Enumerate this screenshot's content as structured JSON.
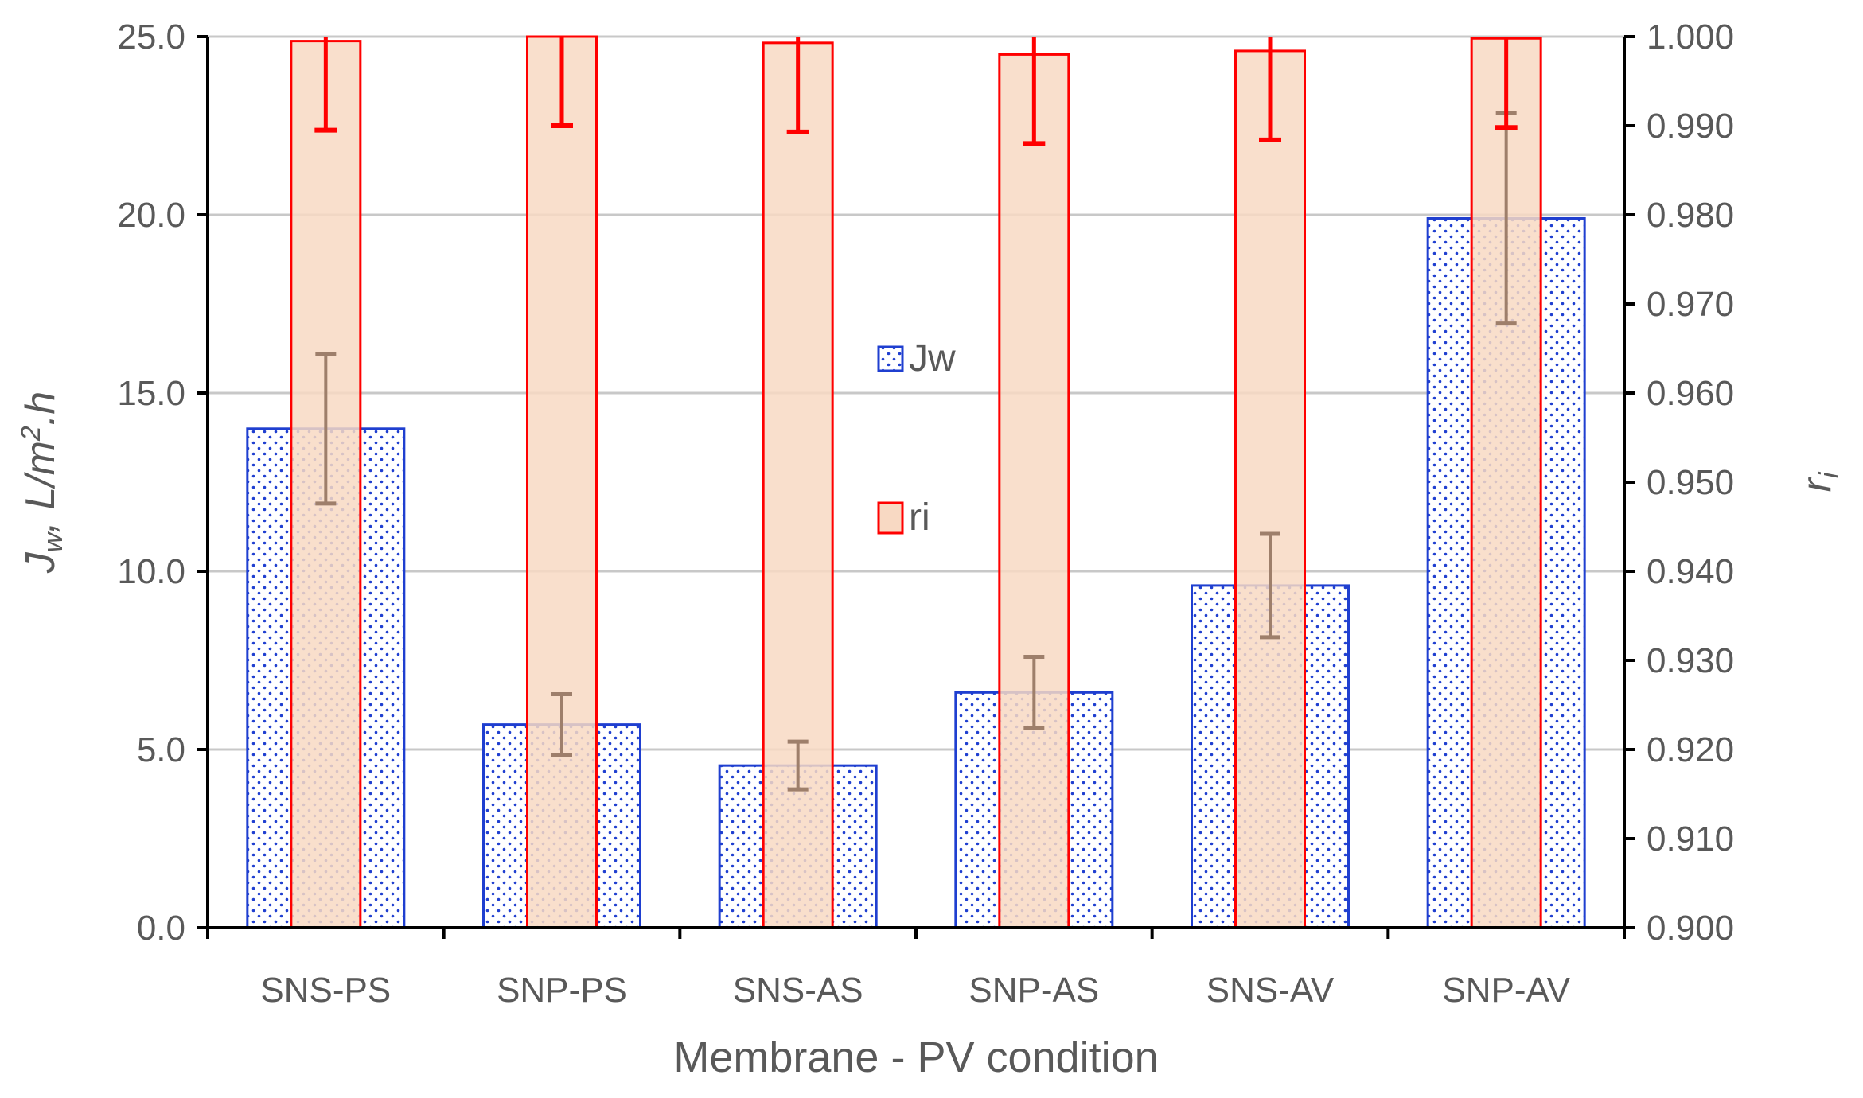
{
  "chart_data": {
    "type": "bar",
    "xlabel": "Membrane - PV condition",
    "ylabel": "Jw, L/m2.h",
    "ylabel_parts": {
      "main": "J",
      "sub": "w",
      "rest": ", L/m",
      "sup": "2",
      "tail": ".h"
    },
    "y2label": "ri",
    "y2label_parts": {
      "main": "r",
      "sub": "i"
    },
    "categories": [
      "SNS-PS",
      "SNP-PS",
      "SNS-AS",
      "SNP-AS",
      "SNS-AV",
      "SNP-AV"
    ],
    "ylim": [
      0,
      25
    ],
    "yticks": [
      "0.0",
      "5.0",
      "10.0",
      "15.0",
      "20.0",
      "25.0"
    ],
    "y2lim": [
      0.9,
      1.0
    ],
    "y2ticks": [
      "0.900",
      "0.910",
      "0.920",
      "0.930",
      "0.940",
      "0.950",
      "0.960",
      "0.970",
      "0.980",
      "0.990",
      "1.000"
    ],
    "grid": true,
    "legend_position": "center",
    "series": [
      {
        "name": "Jw",
        "axis": "left",
        "color": "#1f3fd0",
        "pattern": "dotted",
        "values": [
          14.0,
          5.7,
          4.55,
          6.6,
          9.6,
          19.9
        ],
        "errors": [
          2.1,
          0.85,
          0.67,
          1.0,
          1.45,
          2.95
        ],
        "error_color": "#9e7f6b"
      },
      {
        "name": "ri",
        "axis": "right",
        "color": "#ff0000",
        "fill": "#f8d9c3",
        "values": [
          0.9995,
          1.0,
          0.9993,
          0.998,
          0.9984,
          0.9998
        ],
        "errors": [
          0.01,
          0.01,
          0.01,
          0.01,
          0.01,
          0.01
        ],
        "error_color": "#ff0000"
      }
    ]
  }
}
